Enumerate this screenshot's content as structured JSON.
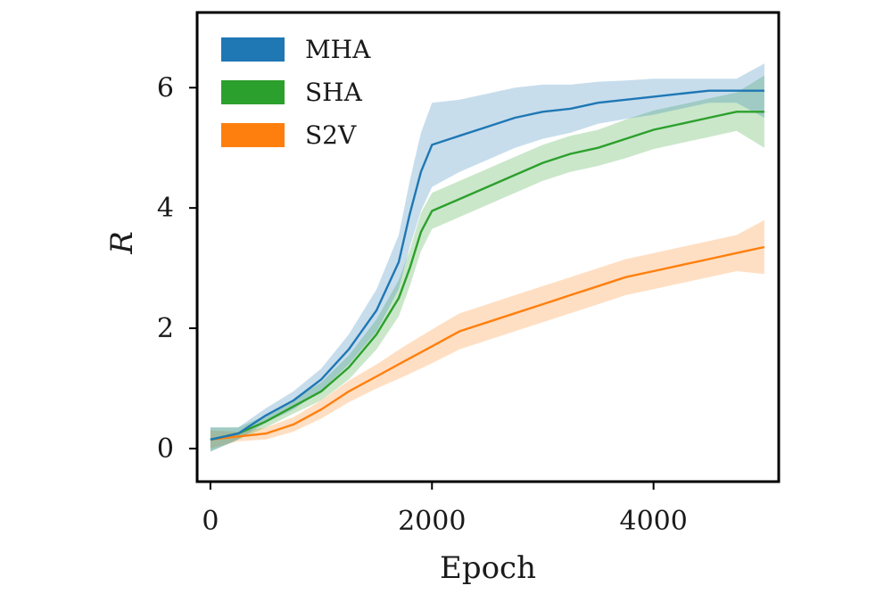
{
  "chart_data": {
    "type": "line",
    "title": "",
    "xlabel": "Epoch",
    "ylabel": "R",
    "xlim": [
      -120,
      5130
    ],
    "ylim": [
      -0.55,
      7.25
    ],
    "xticks": [
      0,
      2000,
      4000
    ],
    "xtick_labels": [
      "0",
      "2000",
      "4000"
    ],
    "yticks": [
      0,
      2,
      4,
      6
    ],
    "ytick_labels": [
      "0",
      "2",
      "4",
      "6"
    ],
    "grid": false,
    "legend_position": "top-left",
    "shaded_band": "variability across runs",
    "series": [
      {
        "name": "MHA",
        "color": "#1f77b4",
        "x": [
          0,
          250,
          500,
          750,
          1000,
          1250,
          1500,
          1700,
          1800,
          1900,
          2000,
          2250,
          2500,
          2750,
          3000,
          3250,
          3500,
          3750,
          4000,
          4250,
          4500,
          4750,
          5000
        ],
        "mean": [
          0.15,
          0.25,
          0.55,
          0.8,
          1.15,
          1.65,
          2.3,
          3.1,
          3.9,
          4.6,
          5.05,
          5.2,
          5.35,
          5.5,
          5.6,
          5.65,
          5.75,
          5.8,
          5.85,
          5.9,
          5.95,
          5.95,
          5.95
        ],
        "spread": [
          0.2,
          0.1,
          0.12,
          0.15,
          0.18,
          0.25,
          0.35,
          0.45,
          0.55,
          0.65,
          0.7,
          0.6,
          0.55,
          0.5,
          0.45,
          0.4,
          0.35,
          0.32,
          0.3,
          0.25,
          0.2,
          0.2,
          0.45
        ]
      },
      {
        "name": "SHA",
        "color": "#2ca02c",
        "x": [
          0,
          250,
          500,
          750,
          1000,
          1250,
          1500,
          1700,
          1800,
          1900,
          2000,
          2250,
          2500,
          2750,
          3000,
          3250,
          3500,
          3750,
          4000,
          4250,
          4500,
          4750,
          5000
        ],
        "mean": [
          0.15,
          0.25,
          0.45,
          0.7,
          0.95,
          1.35,
          1.9,
          2.5,
          3.0,
          3.6,
          3.95,
          4.15,
          4.35,
          4.55,
          4.75,
          4.9,
          5.0,
          5.15,
          5.3,
          5.4,
          5.5,
          5.6,
          5.6
        ],
        "spread": [
          0.2,
          0.1,
          0.1,
          0.12,
          0.15,
          0.2,
          0.25,
          0.3,
          0.3,
          0.32,
          0.3,
          0.3,
          0.3,
          0.3,
          0.3,
          0.3,
          0.3,
          0.32,
          0.32,
          0.32,
          0.32,
          0.32,
          0.6
        ]
      },
      {
        "name": "S2V",
        "color": "#ff7f0e",
        "x": [
          0,
          250,
          500,
          750,
          1000,
          1250,
          1500,
          1750,
          2000,
          2250,
          2500,
          2750,
          3000,
          3250,
          3500,
          3750,
          4000,
          4250,
          4500,
          4750,
          5000
        ],
        "mean": [
          0.15,
          0.2,
          0.25,
          0.4,
          0.65,
          0.95,
          1.2,
          1.45,
          1.7,
          1.95,
          2.1,
          2.25,
          2.4,
          2.55,
          2.7,
          2.85,
          2.95,
          3.05,
          3.15,
          3.25,
          3.35
        ],
        "spread": [
          0.15,
          0.08,
          0.1,
          0.12,
          0.15,
          0.18,
          0.2,
          0.25,
          0.28,
          0.3,
          0.3,
          0.3,
          0.3,
          0.3,
          0.3,
          0.3,
          0.3,
          0.3,
          0.3,
          0.3,
          0.45
        ]
      }
    ]
  }
}
